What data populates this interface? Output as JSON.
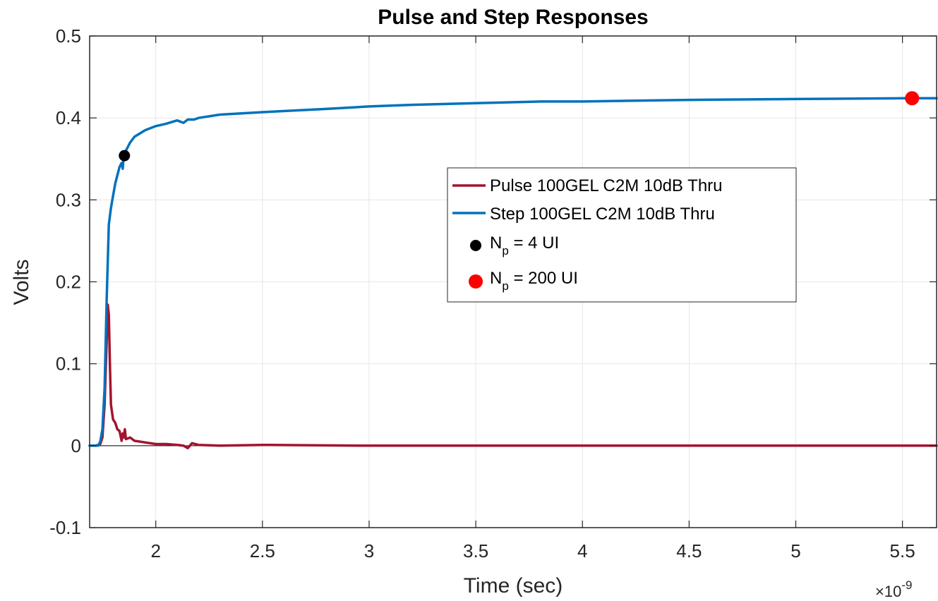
{
  "chart_data": {
    "type": "line",
    "title": "Pulse and Step Responses",
    "xlabel": "Time (sec)",
    "ylabel": "Volts",
    "x_exponent_label": "×10",
    "x_exponent_power": "-9",
    "xlim": [
      1.69,
      5.66
    ],
    "ylim": [
      -0.1,
      0.5
    ],
    "xticks": [
      2,
      2.5,
      3,
      3.5,
      4,
      4.5,
      5,
      5.5
    ],
    "xtick_labels": [
      "2",
      "2.5",
      "3",
      "3.5",
      "4",
      "4.5",
      "5",
      "5.5"
    ],
    "yticks": [
      -0.1,
      0,
      0.1,
      0.2,
      0.3,
      0.4,
      0.5
    ],
    "ytick_labels": [
      "-0.1",
      "0",
      "0.1",
      "0.2",
      "0.3",
      "0.4",
      "0.5"
    ],
    "grid": true,
    "legend_position": "center-right",
    "series": [
      {
        "name": "Pulse 100GEL C2M 10dB Thru",
        "color": "#A2142F",
        "x": [
          1.69,
          1.72,
          1.74,
          1.75,
          1.76,
          1.77,
          1.775,
          1.78,
          1.785,
          1.79,
          1.8,
          1.81,
          1.82,
          1.83,
          1.84,
          1.845,
          1.85,
          1.855,
          1.86,
          1.88,
          1.9,
          1.95,
          2.0,
          2.05,
          2.1,
          2.13,
          2.15,
          2.17,
          2.2,
          2.3,
          2.5,
          3.0,
          3.5,
          4.0,
          4.5,
          5.0,
          5.5,
          5.66
        ],
        "y": [
          0.0,
          0.0,
          0.002,
          0.01,
          0.05,
          0.13,
          0.172,
          0.16,
          0.1,
          0.05,
          0.032,
          0.028,
          0.02,
          0.018,
          0.006,
          0.015,
          0.01,
          0.02,
          0.008,
          0.01,
          0.006,
          0.004,
          0.002,
          0.002,
          0.001,
          0.0,
          -0.003,
          0.003,
          0.001,
          0.0,
          0.001,
          0.0,
          0.0,
          0.0,
          0.0,
          0.0,
          0.0,
          0.0
        ]
      },
      {
        "name": "Step 100GEL C2M 10dB Thru",
        "color": "#0072BD",
        "x": [
          1.69,
          1.73,
          1.74,
          1.75,
          1.76,
          1.77,
          1.78,
          1.79,
          1.8,
          1.81,
          1.82,
          1.83,
          1.84,
          1.845,
          1.85,
          1.86,
          1.88,
          1.9,
          1.95,
          2.0,
          2.05,
          2.1,
          2.13,
          2.15,
          2.18,
          2.2,
          2.3,
          2.5,
          2.8,
          3.0,
          3.2,
          3.5,
          3.8,
          4.0,
          4.5,
          5.0,
          5.5,
          5.66
        ],
        "y": [
          0.0,
          0.0,
          0.005,
          0.02,
          0.07,
          0.18,
          0.27,
          0.29,
          0.305,
          0.32,
          0.33,
          0.34,
          0.345,
          0.338,
          0.355,
          0.36,
          0.37,
          0.377,
          0.385,
          0.39,
          0.393,
          0.397,
          0.394,
          0.398,
          0.398,
          0.4,
          0.404,
          0.407,
          0.411,
          0.414,
          0.416,
          0.418,
          0.42,
          0.42,
          0.422,
          0.423,
          0.424,
          0.424
        ]
      }
    ],
    "markers": [
      {
        "name": "N",
        "sub": "p",
        "suffix": " = 4 UI",
        "color": "#000000",
        "x": 1.853,
        "y": 0.354
      },
      {
        "name": "N",
        "sub": "p",
        "suffix": " = 200 UI",
        "color": "#FF0000",
        "x": 5.545,
        "y": 0.424
      }
    ]
  }
}
